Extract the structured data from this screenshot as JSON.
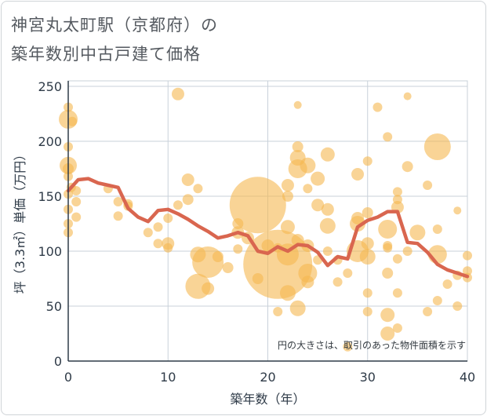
{
  "title_line1": "神宮丸太町駅（京都府）の",
  "title_line2": "築年数別中古戸建て価格",
  "chart_data": {
    "type": "scatter",
    "xlabel": "築年数（年）",
    "ylabel": "坪（3.3㎡）単価（万円）",
    "xlim": [
      0,
      40
    ],
    "ylim": [
      0,
      255
    ],
    "xticks": [
      0,
      10,
      20,
      30,
      40
    ],
    "yticks": [
      0,
      50,
      100,
      150,
      200,
      250
    ],
    "grid": true,
    "note": "円の大きさは、取引のあった物件面積を示す",
    "colors": {
      "bubble": "#f5b750",
      "line": "#d9664f",
      "grid": "#c9d1da",
      "axis": "#2f3b48"
    },
    "series": [
      {
        "kind": "bubble",
        "points": [
          {
            "x": 0,
            "y": 231,
            "r": 6
          },
          {
            "x": 0,
            "y": 220,
            "r": 12
          },
          {
            "x": 0.4,
            "y": 218,
            "r": 6
          },
          {
            "x": 0,
            "y": 195,
            "r": 6
          },
          {
            "x": 0,
            "y": 178,
            "r": 11
          },
          {
            "x": 0,
            "y": 175,
            "r": 7
          },
          {
            "x": 0,
            "y": 168,
            "r": 6
          },
          {
            "x": 0.3,
            "y": 158,
            "r": 6
          },
          {
            "x": 0,
            "y": 152,
            "r": 6
          },
          {
            "x": 0.8,
            "y": 155,
            "r": 6
          },
          {
            "x": 0.8,
            "y": 145,
            "r": 6
          },
          {
            "x": 0,
            "y": 138,
            "r": 6
          },
          {
            "x": 0.8,
            "y": 131,
            "r": 6
          },
          {
            "x": 0,
            "y": 125,
            "r": 6
          },
          {
            "x": 0,
            "y": 117,
            "r": 6
          },
          {
            "x": 4,
            "y": 157,
            "r": 6
          },
          {
            "x": 5,
            "y": 145,
            "r": 6
          },
          {
            "x": 5,
            "y": 132,
            "r": 6
          },
          {
            "x": 6,
            "y": 143,
            "r": 6
          },
          {
            "x": 6,
            "y": 141,
            "r": 6
          },
          {
            "x": 8,
            "y": 117,
            "r": 6
          },
          {
            "x": 9,
            "y": 122,
            "r": 6
          },
          {
            "x": 9,
            "y": 107,
            "r": 6
          },
          {
            "x": 10,
            "y": 130,
            "r": 6
          },
          {
            "x": 10,
            "y": 107,
            "r": 8
          },
          {
            "x": 10,
            "y": 103,
            "r": 6
          },
          {
            "x": 11,
            "y": 243,
            "r": 8
          },
          {
            "x": 11,
            "y": 142,
            "r": 6
          },
          {
            "x": 12,
            "y": 165,
            "r": 8
          },
          {
            "x": 12,
            "y": 147,
            "r": 7
          },
          {
            "x": 13,
            "y": 157,
            "r": 6
          },
          {
            "x": 13,
            "y": 97,
            "r": 10
          },
          {
            "x": 13,
            "y": 68,
            "r": 16
          },
          {
            "x": 14,
            "y": 90,
            "r": 20
          },
          {
            "x": 14,
            "y": 66,
            "r": 8
          },
          {
            "x": 15,
            "y": 95,
            "r": 7
          },
          {
            "x": 16,
            "y": 85,
            "r": 7
          },
          {
            "x": 17,
            "y": 125,
            "r": 7
          },
          {
            "x": 17,
            "y": 117,
            "r": 8
          },
          {
            "x": 17,
            "y": 102,
            "r": 6
          },
          {
            "x": 18,
            "y": 112,
            "r": 8
          },
          {
            "x": 19,
            "y": 142,
            "r": 36
          },
          {
            "x": 19,
            "y": 75,
            "r": 7
          },
          {
            "x": 20,
            "y": 105,
            "r": 8
          },
          {
            "x": 21,
            "y": 88,
            "r": 44
          },
          {
            "x": 21,
            "y": 103,
            "r": 6
          },
          {
            "x": 21,
            "y": 45,
            "r": 6
          },
          {
            "x": 22,
            "y": 160,
            "r": 8
          },
          {
            "x": 22,
            "y": 150,
            "r": 7
          },
          {
            "x": 22,
            "y": 122,
            "r": 9
          },
          {
            "x": 22,
            "y": 97,
            "r": 14
          },
          {
            "x": 22,
            "y": 62,
            "r": 10
          },
          {
            "x": 23,
            "y": 233,
            "r": 5
          },
          {
            "x": 23,
            "y": 195,
            "r": 7
          },
          {
            "x": 23,
            "y": 185,
            "r": 10
          },
          {
            "x": 23,
            "y": 175,
            "r": 12
          },
          {
            "x": 23,
            "y": 110,
            "r": 8
          },
          {
            "x": 23,
            "y": 48,
            "r": 10
          },
          {
            "x": 24,
            "y": 178,
            "r": 10
          },
          {
            "x": 24,
            "y": 157,
            "r": 6
          },
          {
            "x": 24,
            "y": 105,
            "r": 8
          },
          {
            "x": 24,
            "y": 80,
            "r": 12
          },
          {
            "x": 24,
            "y": 72,
            "r": 8
          },
          {
            "x": 25,
            "y": 166,
            "r": 9
          },
          {
            "x": 25,
            "y": 142,
            "r": 8
          },
          {
            "x": 25,
            "y": 92,
            "r": 6
          },
          {
            "x": 26,
            "y": 188,
            "r": 9
          },
          {
            "x": 26,
            "y": 138,
            "r": 8
          },
          {
            "x": 26,
            "y": 123,
            "r": 10
          },
          {
            "x": 26,
            "y": 100,
            "r": 6
          },
          {
            "x": 27,
            "y": 92,
            "r": 6
          },
          {
            "x": 27,
            "y": 72,
            "r": 6
          },
          {
            "x": 28,
            "y": 80,
            "r": 6
          },
          {
            "x": 28,
            "y": 13,
            "r": 6
          },
          {
            "x": 29,
            "y": 170,
            "r": 8
          },
          {
            "x": 29,
            "y": 130,
            "r": 8
          },
          {
            "x": 29,
            "y": 125,
            "r": 10
          },
          {
            "x": 29,
            "y": 100,
            "r": 14
          },
          {
            "x": 30,
            "y": 182,
            "r": 6
          },
          {
            "x": 30,
            "y": 135,
            "r": 7
          },
          {
            "x": 30,
            "y": 107,
            "r": 8
          },
          {
            "x": 30,
            "y": 95,
            "r": 10
          },
          {
            "x": 30,
            "y": 62,
            "r": 6
          },
          {
            "x": 30,
            "y": 45,
            "r": 6
          },
          {
            "x": 31,
            "y": 231,
            "r": 6
          },
          {
            "x": 32,
            "y": 204,
            "r": 6
          },
          {
            "x": 32,
            "y": 120,
            "r": 12
          },
          {
            "x": 32,
            "y": 105,
            "r": 6
          },
          {
            "x": 32,
            "y": 103,
            "r": 6
          },
          {
            "x": 32,
            "y": 80,
            "r": 7
          },
          {
            "x": 32,
            "y": 42,
            "r": 9
          },
          {
            "x": 32,
            "y": 25,
            "r": 9
          },
          {
            "x": 33,
            "y": 154,
            "r": 6
          },
          {
            "x": 33,
            "y": 147,
            "r": 6
          },
          {
            "x": 33,
            "y": 140,
            "r": 8
          },
          {
            "x": 33,
            "y": 93,
            "r": 6
          },
          {
            "x": 33,
            "y": 30,
            "r": 6
          },
          {
            "x": 33,
            "y": 62,
            "r": 6
          },
          {
            "x": 34,
            "y": 241,
            "r": 5
          },
          {
            "x": 34,
            "y": 177,
            "r": 7
          },
          {
            "x": 34,
            "y": 100,
            "r": 6
          },
          {
            "x": 35,
            "y": 117,
            "r": 10
          },
          {
            "x": 36,
            "y": 160,
            "r": 6
          },
          {
            "x": 36,
            "y": 45,
            "r": 6
          },
          {
            "x": 37,
            "y": 195,
            "r": 17
          },
          {
            "x": 37,
            "y": 120,
            "r": 6
          },
          {
            "x": 37,
            "y": 97,
            "r": 12
          },
          {
            "x": 37,
            "y": 55,
            "r": 6
          },
          {
            "x": 38,
            "y": 70,
            "r": 6
          },
          {
            "x": 39,
            "y": 137,
            "r": 5
          },
          {
            "x": 39,
            "y": 78,
            "r": 6
          },
          {
            "x": 39,
            "y": 50,
            "r": 6
          },
          {
            "x": 40,
            "y": 96,
            "r": 6
          },
          {
            "x": 40,
            "y": 82,
            "r": 6
          },
          {
            "x": 40,
            "y": 76,
            "r": 6
          }
        ]
      },
      {
        "kind": "line",
        "x": [
          0,
          1,
          2,
          3,
          4,
          5,
          6,
          7,
          8,
          9,
          10,
          11,
          12,
          13,
          14,
          15,
          16,
          17,
          18,
          19,
          20,
          21,
          22,
          23,
          24,
          25,
          26,
          27,
          28,
          29,
          30,
          31,
          32,
          33,
          34,
          35,
          36,
          37,
          38,
          39,
          40
        ],
        "y": [
          155,
          165,
          166,
          162,
          160,
          158,
          139,
          131,
          127,
          137,
          138,
          134,
          129,
          123,
          118,
          112,
          114,
          117,
          114,
          100,
          98,
          104,
          100,
          106,
          105,
          99,
          87,
          95,
          93,
          122,
          128,
          131,
          136,
          136,
          108,
          107,
          99,
          88,
          83,
          80,
          77
        ]
      }
    ]
  }
}
